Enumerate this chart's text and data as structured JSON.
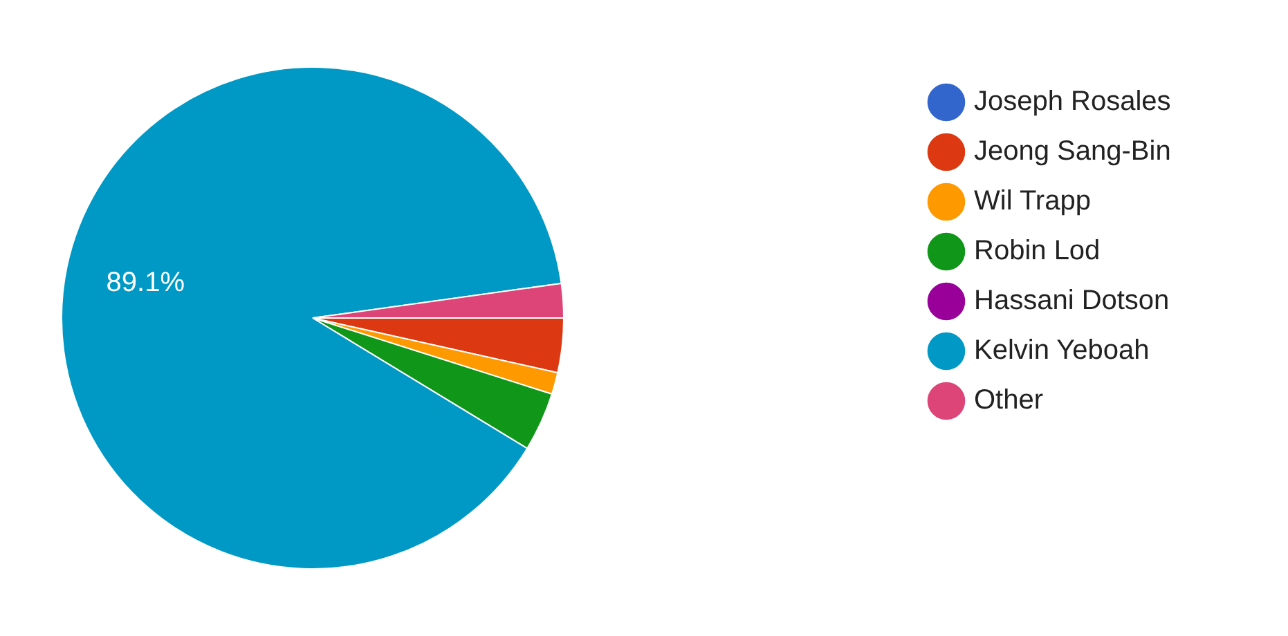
{
  "chart_data": {
    "type": "pie",
    "categories": [
      "Joseph Rosales",
      "Jeong Sang-Bin",
      "Wil Trapp",
      "Robin Lod",
      "Hassani Dotson",
      "Kelvin Yeboah",
      "Other"
    ],
    "values": [
      0,
      3.5,
      1.4,
      3.8,
      0,
      89.1,
      2.2
    ],
    "colors": [
      "#3366cc",
      "#dc3912",
      "#ff9900",
      "#109618",
      "#990099",
      "#0099c6",
      "#dd4477"
    ],
    "value_labels": [
      null,
      null,
      null,
      null,
      null,
      "89.1%",
      null
    ],
    "legend": "right"
  }
}
